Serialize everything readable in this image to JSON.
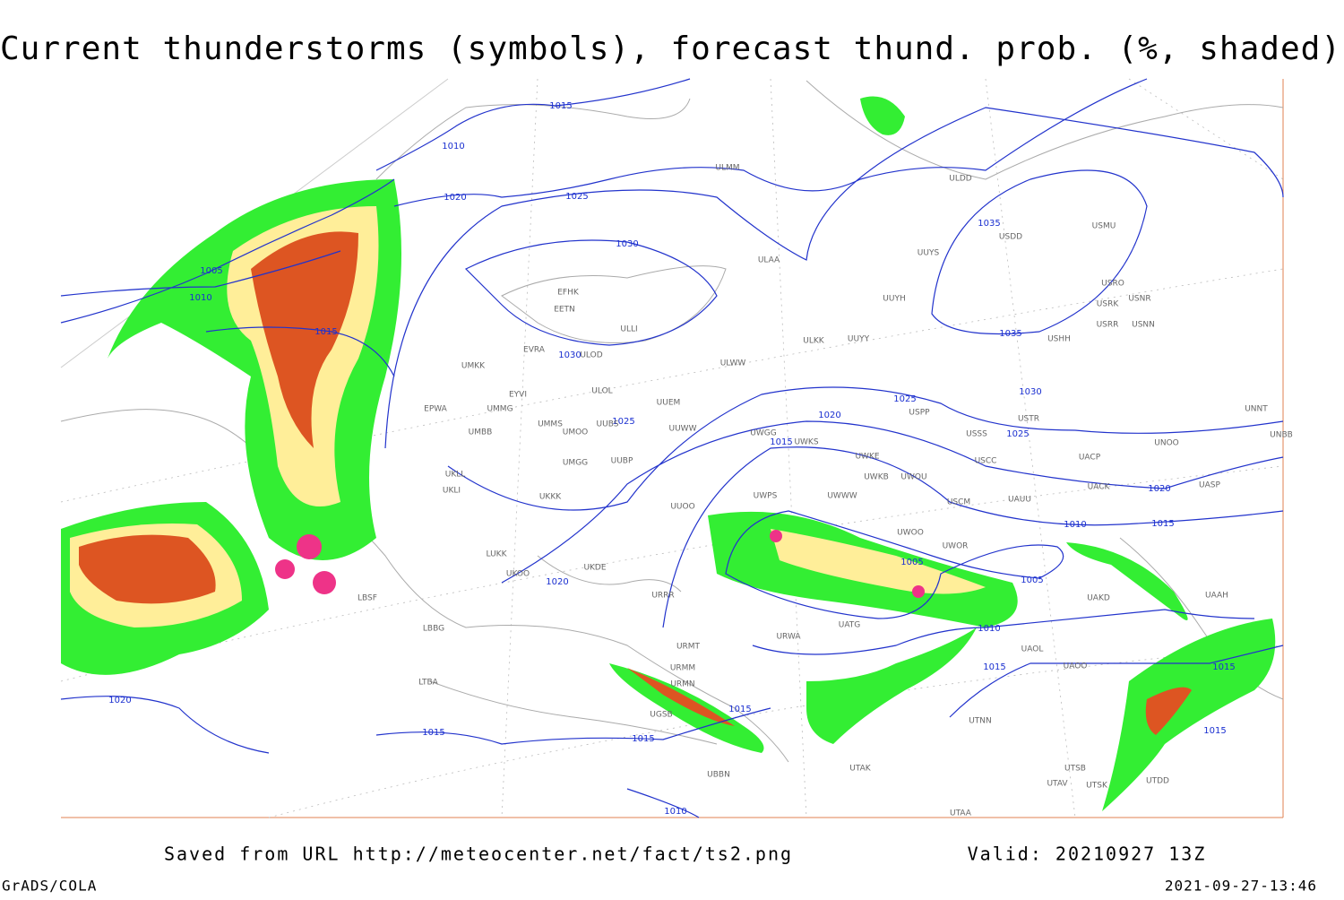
{
  "header": {
    "title": "Current thunderstorms (symbols), forecast thund. prob. (%, shaded)"
  },
  "footer": {
    "source": "Saved from URL http://meteocenter.net/fact/ts2.png",
    "valid": "Valid: 20210927 13Z",
    "software": "GrADS/COLA",
    "timestamp": "2021-09-27-13:46"
  },
  "isobar_labels": [
    "1015",
    "1010",
    "1020",
    "1025",
    "1005",
    "1010",
    "1015",
    "1030",
    "1030",
    "1035",
    "1035",
    "1030",
    "1025",
    "1020",
    "1025",
    "1025",
    "1015",
    "1020",
    "1010",
    "1015",
    "1005",
    "1005",
    "1010",
    "1015",
    "1020",
    "1020",
    "1015",
    "1015",
    "1015",
    "1010",
    "1015",
    "1015"
  ],
  "stations": [
    "ULMM",
    "ULDD",
    "USDD",
    "USMU",
    "UUYS",
    "ULAA",
    "UUYH",
    "USRO",
    "USRK",
    "USNR",
    "USRR",
    "USNN",
    "USHH",
    "UUYY",
    "ULKK",
    "ULWW",
    "EFHK",
    "EETN",
    "ULLI",
    "EVRA",
    "ULOD",
    "UMKK",
    "ULOL",
    "EYVI",
    "UUEM",
    "UMMG",
    "EPWA",
    "UMMS",
    "UMOO",
    "UUBS",
    "UUWW",
    "UMBB",
    "UWGG",
    "UWKS",
    "USPP",
    "USTR",
    "USSS",
    "UNNT",
    "UNBB",
    "UNOO",
    "USCC",
    "UACP",
    "UMGG",
    "UUBP",
    "UWKE",
    "UWKB",
    "UWOU",
    "UACK",
    "UASP",
    "UKLL",
    "UKLI",
    "UKKK",
    "UUOO",
    "UWPS",
    "UWWW",
    "USCM",
    "UAUU",
    "UWOO",
    "UWOR",
    "UAKD",
    "UAAH",
    "UKOO",
    "LUKK",
    "UKDE",
    "URRR",
    "UATG",
    "URWA",
    "UAOL",
    "UAOO",
    "URMT",
    "URMM",
    "URMN",
    "UGSB",
    "UTNN",
    "UTAK",
    "UTSB",
    "UTAV",
    "UTSK",
    "UTDD",
    "UTAA",
    "LBSF",
    "LBBG",
    "LTBA",
    "UBBN"
  ]
}
